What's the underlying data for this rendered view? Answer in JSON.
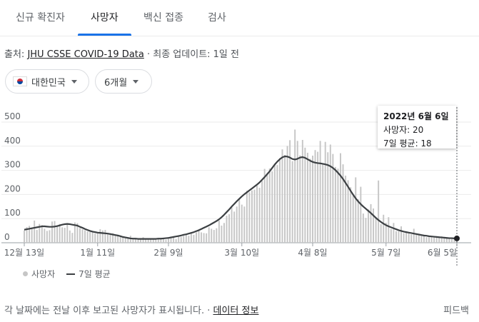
{
  "tabs": [
    {
      "label": "신규 확진자"
    },
    {
      "label": "사망자"
    },
    {
      "label": "백신 접종"
    },
    {
      "label": "검사"
    }
  ],
  "source": {
    "prefix": "출처: ",
    "link": "JHU CSSE COVID-19 Data",
    "suffix": " · 최종 업데이트: 1일 전"
  },
  "filters": {
    "country": "대한민국",
    "period": "6개월"
  },
  "tooltip": {
    "date": "2022년 6월 6일",
    "deaths": "사망자: 20",
    "avg": "7일 평균: 18"
  },
  "legend": {
    "deaths": "사망자",
    "avg": "7일 평균"
  },
  "footer": {
    "text": "각 날짜에는 전날 이후 보고된 사망자가 표시됩니다.",
    "sep": " · ",
    "link": "데이터 정보",
    "feedback": "피드백"
  },
  "chart_data": {
    "type": "bar",
    "ylim": [
      0,
      500
    ],
    "yticks": [
      0,
      100,
      200,
      300,
      400,
      500
    ],
    "xticks": [
      "12월 13일",
      "1월 11일",
      "2월 9일",
      "3월 10일",
      "4월 8일",
      "5월 7일",
      "6월 5일"
    ],
    "grid": true,
    "legend_position": "bottom-left",
    "series": [
      {
        "name": "사망자",
        "type": "bar",
        "color": "#c6c6c6",
        "values": [
          51,
          65,
          70,
          58,
          92,
          53,
          78,
          73,
          58,
          49,
          52,
          88,
          90,
          72,
          78,
          64,
          62,
          77,
          51,
          41,
          84,
          81,
          61,
          56,
          52,
          47,
          45,
          44,
          38,
          43,
          56,
          51,
          53,
          35,
          40,
          39,
          31,
          29,
          29,
          23,
          24,
          17,
          29,
          13,
          19,
          19,
          13,
          23,
          15,
          17,
          16,
          13,
          15,
          14,
          16,
          18,
          13,
          16,
          26,
          25,
          15,
          25,
          24,
          29,
          37,
          29,
          39,
          33,
          43,
          50,
          43,
          40,
          39,
          64,
          58,
          53,
          60,
          92,
          71,
          82,
          112,
          118,
          147,
          129,
          150,
          180,
          158,
          150,
          216,
          209,
          217,
          220,
          237,
          228,
          257,
          306,
          286,
          308,
          296,
          327,
          322,
          351,
          387,
          364,
          401,
          425,
          338,
          469,
          422,
          362,
          426,
          394,
          373,
          348,
          361,
          384,
          377,
          422,
          326,
          418,
          375,
          407,
          368,
          314,
          307,
          371,
          325,
          278,
          259,
          230,
          196,
          271,
          180,
          232,
          121,
          103,
          138,
          160,
          142,
          107,
          258,
          77,
          116,
          83,
          106,
          57,
          82,
          48,
          47,
          68,
          40,
          47,
          41,
          35,
          58,
          39,
          37,
          29,
          32,
          23,
          23,
          27,
          28,
          24,
          21,
          27,
          22,
          19,
          21,
          21,
          23,
          20
        ]
      },
      {
        "name": "7일 평균",
        "type": "line",
        "color": "#3c4043",
        "values": [
          54,
          56,
          58,
          60,
          62,
          64,
          66,
          68,
          68,
          67,
          66,
          66,
          67,
          69,
          72,
          75,
          77,
          78,
          77,
          75,
          73,
          71,
          66,
          62,
          57,
          53,
          49,
          46,
          44,
          42,
          41,
          40,
          39,
          38,
          36,
          34,
          32,
          30,
          27,
          24,
          22,
          20,
          18,
          17,
          17,
          16,
          16,
          16,
          16,
          16,
          16,
          16,
          16,
          17,
          17,
          18,
          19,
          20,
          22,
          24,
          26,
          28,
          30,
          33,
          35,
          38,
          41,
          44,
          48,
          52,
          57,
          62,
          67,
          72,
          78,
          84,
          90,
          97,
          106,
          116,
          127,
          138,
          150,
          161,
          172,
          182,
          192,
          201,
          209,
          217,
          225,
          233,
          241,
          250,
          261,
          272,
          284,
          296,
          310,
          324,
          336,
          346,
          354,
          358,
          357,
          353,
          347,
          345,
          348,
          353,
          355,
          352,
          346,
          340,
          335,
          332,
          330,
          329,
          327,
          325,
          322,
          317,
          310,
          301,
          290,
          278,
          264,
          248,
          232,
          215,
          199,
          184,
          171,
          160,
          150,
          141,
          132,
          123,
          113,
          103,
          94,
          86,
          79,
          73,
          68,
          64,
          60,
          56,
          52,
          49,
          46,
          44,
          42,
          40,
          38,
          36,
          34,
          32,
          30,
          29,
          27,
          26,
          25,
          24,
          23,
          22,
          21,
          20,
          19,
          19,
          18,
          18
        ]
      }
    ]
  }
}
